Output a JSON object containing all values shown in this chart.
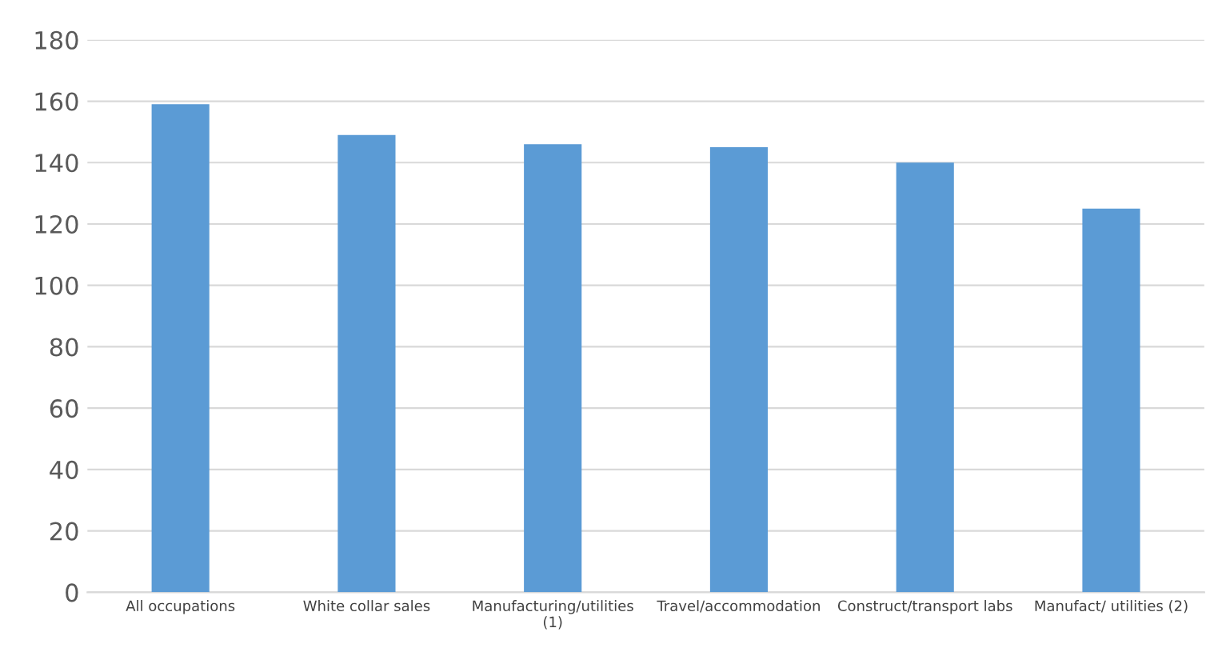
{
  "chart_data": {
    "type": "bar",
    "categories": [
      "All occupations",
      "White collar sales",
      "Manufacturing/utilities\n(1)",
      "Travel/accommodation",
      "Construct/transport labs",
      "Manufact/ utilities (2)"
    ],
    "values": [
      159,
      149,
      146,
      145,
      140,
      125
    ],
    "color": "#5b9bd5",
    "ylim": [
      0,
      180
    ],
    "yticks": [
      0,
      20,
      40,
      60,
      80,
      100,
      120,
      140,
      160,
      180
    ],
    "grid": "y",
    "legend": false
  }
}
